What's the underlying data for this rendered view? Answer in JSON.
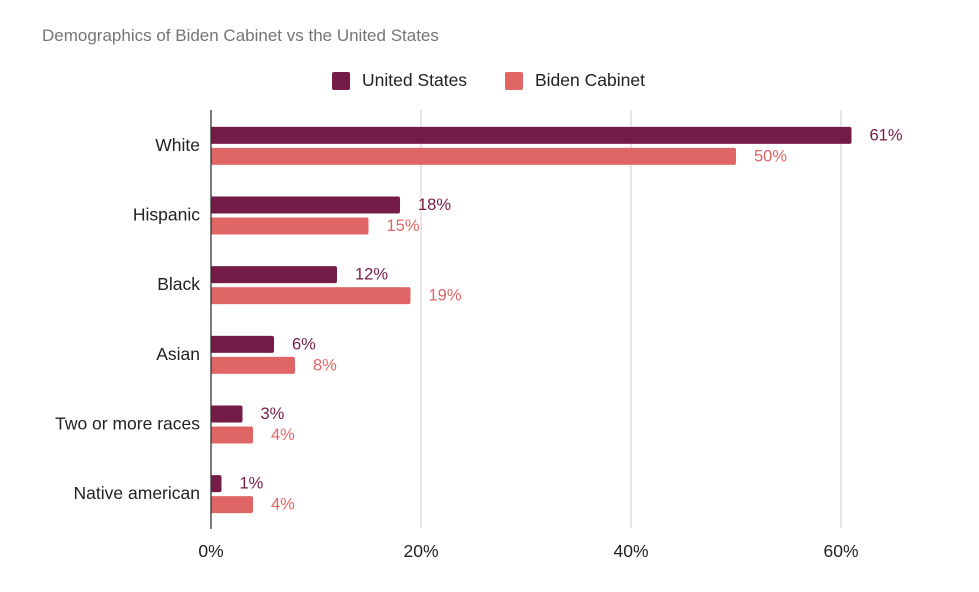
{
  "chart_data": {
    "type": "bar",
    "orientation": "horizontal",
    "title": "Demographics of Biden Cabinet vs the United States",
    "categories": [
      "White",
      "Hispanic",
      "Black",
      "Asian",
      "Two or more races",
      "Native american"
    ],
    "series": [
      {
        "name": "United States",
        "color": "#741b47",
        "values": [
          61,
          18,
          12,
          6,
          3,
          1
        ],
        "labels": [
          "61%",
          "18%",
          "12%",
          "6%",
          "3%",
          "1%"
        ]
      },
      {
        "name": "Biden Cabinet",
        "color": "#e06666",
        "values": [
          50,
          15,
          19,
          8,
          4,
          4
        ],
        "labels": [
          "50%",
          "15%",
          "19%",
          "8%",
          "4%",
          "4%"
        ]
      }
    ],
    "xlim": [
      0,
      70
    ],
    "xticks": [
      0,
      20,
      40,
      60
    ],
    "xtick_labels": [
      "0%",
      "20%",
      "40%",
      "60%"
    ],
    "xlabel": "",
    "ylabel": "",
    "grid": true,
    "legend_position": "top-center"
  }
}
